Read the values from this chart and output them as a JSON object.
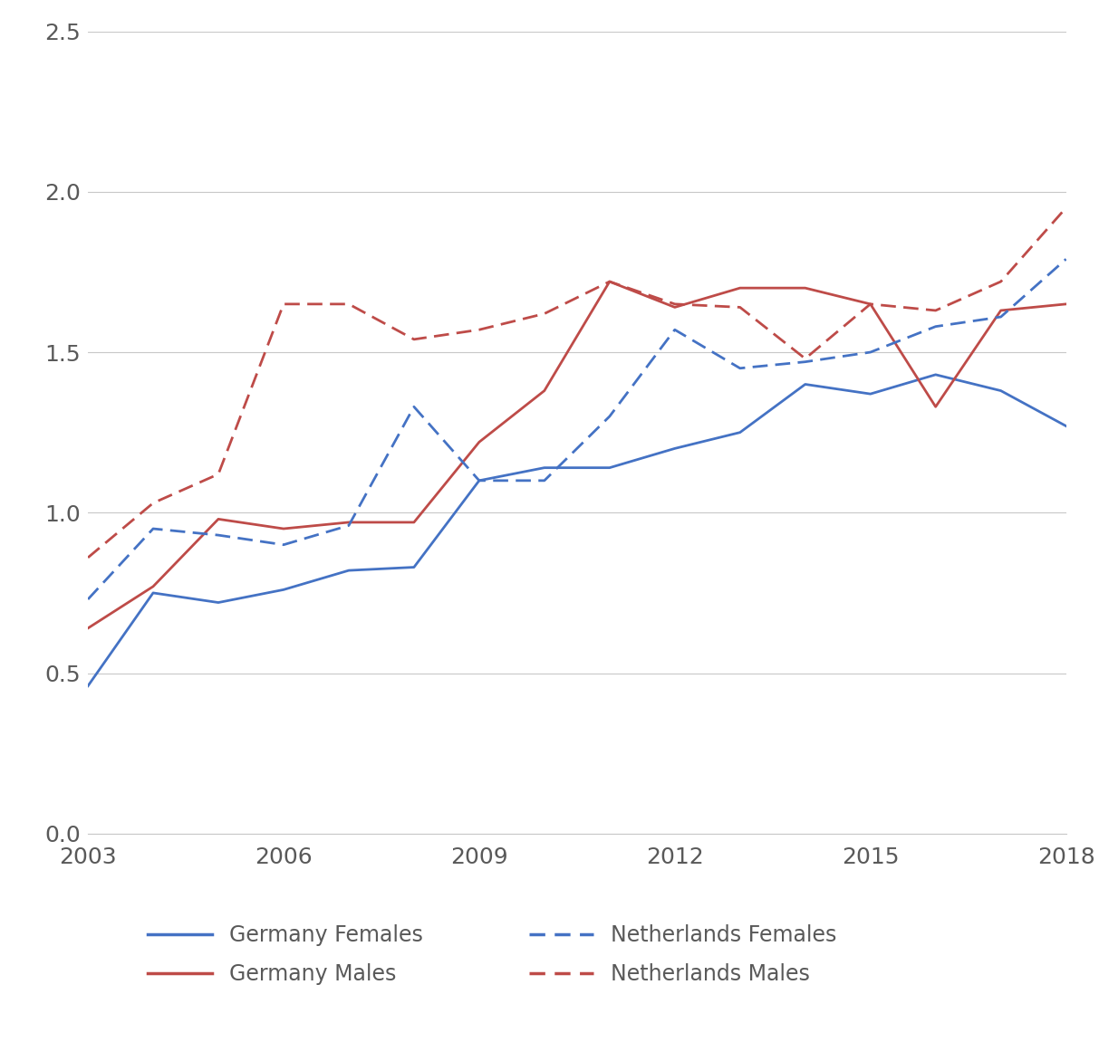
{
  "years": [
    2003,
    2004,
    2005,
    2006,
    2007,
    2008,
    2009,
    2010,
    2011,
    2012,
    2013,
    2014,
    2015,
    2016,
    2017,
    2018
  ],
  "germany_females": [
    0.46,
    0.75,
    0.72,
    0.76,
    0.82,
    0.83,
    1.1,
    1.14,
    1.14,
    1.2,
    1.25,
    1.4,
    1.37,
    1.43,
    1.38,
    1.27
  ],
  "germany_males": [
    0.64,
    0.77,
    0.98,
    0.95,
    0.97,
    0.97,
    1.22,
    1.38,
    1.72,
    1.64,
    1.7,
    1.7,
    1.65,
    1.33,
    1.63,
    1.65
  ],
  "netherlands_females": [
    0.73,
    0.95,
    0.93,
    0.9,
    0.96,
    1.33,
    1.1,
    1.1,
    1.3,
    1.57,
    1.45,
    1.47,
    1.5,
    1.58,
    1.61,
    1.79
  ],
  "netherlands_males": [
    0.86,
    1.03,
    1.12,
    1.65,
    1.65,
    1.54,
    1.57,
    1.62,
    1.72,
    1.65,
    1.64,
    1.48,
    1.65,
    1.63,
    1.72,
    1.95
  ],
  "germany_females_color": "#4472C4",
  "germany_males_color": "#BE4B48",
  "netherlands_females_color": "#4472C4",
  "netherlands_males_color": "#BE4B48",
  "ylim": [
    0.0,
    2.5
  ],
  "yticks": [
    0.0,
    0.5,
    1.0,
    1.5,
    2.0,
    2.5
  ],
  "xticks": [
    2003,
    2006,
    2009,
    2012,
    2015,
    2018
  ],
  "background_color": "#FFFFFF",
  "grid_color": "#C8C8C8",
  "legend_labels": [
    "Germany Females",
    "Germany Males",
    "Netherlands Females",
    "Netherlands Males"
  ],
  "tick_fontsize": 18,
  "legend_fontsize": 17,
  "line_width": 2.0
}
